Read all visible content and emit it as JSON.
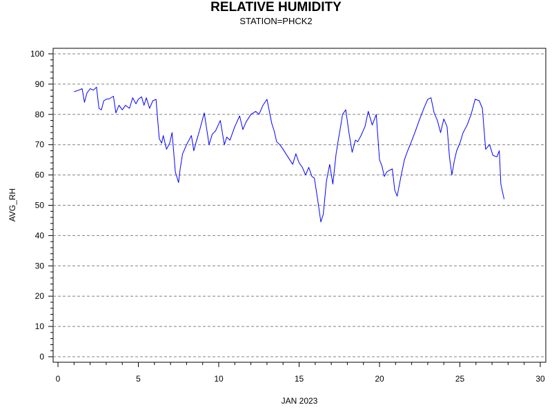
{
  "chart_data": {
    "type": "line",
    "title": "RELATIVE HUMIDITY",
    "subtitle": "STATION=PHCK2",
    "xlabel": "JAN 2023",
    "ylabel": "AVG_RH",
    "xlim": [
      0,
      30
    ],
    "ylim": [
      0,
      100
    ],
    "x_ticks": [
      0,
      5,
      10,
      15,
      20,
      25,
      30
    ],
    "y_ticks": [
      0,
      10,
      20,
      30,
      40,
      50,
      60,
      70,
      80,
      90,
      100
    ],
    "grid": "horizontal dashed at y ticks",
    "line_color": "#0000ff",
    "x": [
      1.0,
      1.3,
      1.5,
      1.65,
      1.8,
      2.0,
      2.2,
      2.4,
      2.55,
      2.7,
      2.85,
      3.0,
      3.2,
      3.45,
      3.6,
      3.8,
      4.0,
      4.2,
      4.45,
      4.65,
      4.85,
      5.0,
      5.2,
      5.35,
      5.5,
      5.7,
      5.9,
      6.1,
      6.3,
      6.45,
      6.55,
      6.75,
      6.95,
      7.1,
      7.3,
      7.5,
      7.6,
      7.75,
      8.0,
      8.3,
      8.45,
      8.6,
      8.8,
      9.1,
      9.4,
      9.6,
      9.8,
      10.1,
      10.35,
      10.5,
      10.7,
      11.0,
      11.3,
      11.5,
      11.7,
      12.0,
      12.3,
      12.5,
      12.75,
      13.0,
      13.3,
      13.45,
      13.6,
      13.8,
      14.0,
      14.3,
      14.6,
      14.8,
      15.0,
      15.2,
      15.4,
      15.6,
      15.8,
      15.95,
      16.15,
      16.35,
      16.5,
      16.7,
      16.9,
      17.1,
      17.3,
      17.45,
      17.55,
      17.7,
      17.9,
      18.1,
      18.3,
      18.5,
      18.65,
      18.85,
      19.1,
      19.3,
      19.55,
      19.8,
      20.0,
      20.15,
      20.3,
      20.45,
      20.6,
      20.8,
      20.95,
      21.1,
      21.35,
      21.55,
      21.75,
      21.95,
      22.2,
      22.5,
      22.8,
      23.0,
      23.2,
      23.4,
      23.6,
      23.8,
      24.0,
      24.2,
      24.35,
      24.5,
      24.65,
      24.8,
      25.0,
      25.2,
      25.45,
      25.7,
      25.95,
      26.2,
      26.4,
      26.6,
      26.85,
      27.05,
      27.3,
      27.45,
      27.55,
      27.75
    ],
    "y": [
      87.5,
      88.0,
      88.5,
      84.0,
      87.0,
      88.5,
      88.0,
      89.0,
      82.0,
      81.5,
      84.5,
      85.0,
      85.2,
      86.0,
      80.5,
      83.0,
      81.5,
      83.0,
      82.0,
      85.5,
      83.5,
      85.0,
      85.8,
      83.0,
      85.5,
      82.0,
      84.5,
      85.0,
      72.0,
      70.5,
      73.0,
      68.5,
      70.5,
      74.0,
      61.0,
      57.5,
      62.0,
      67.0,
      70.0,
      73.0,
      68.0,
      71.0,
      74.5,
      80.5,
      70.0,
      73.5,
      74.5,
      78.0,
      70.0,
      72.5,
      71.5,
      76.0,
      79.5,
      75.0,
      77.5,
      80.0,
      81.0,
      80.0,
      83.0,
      85.0,
      77.0,
      74.5,
      71.0,
      70.0,
      68.5,
      66.0,
      63.5,
      67.0,
      64.0,
      62.5,
      60.0,
      62.5,
      59.5,
      59.0,
      52.0,
      44.5,
      47.0,
      58.0,
      63.5,
      57.0,
      67.0,
      72.0,
      75.0,
      80.0,
      81.5,
      74.0,
      67.5,
      71.5,
      71.0,
      73.0,
      76.0,
      81.0,
      76.5,
      80.0,
      65.0,
      63.0,
      59.5,
      61.0,
      61.5,
      62.0,
      55.0,
      53.0,
      60.0,
      65.0,
      68.0,
      70.5,
      74.0,
      78.5,
      82.5,
      85.0,
      85.5,
      80.5,
      78.0,
      74.0,
      78.5,
      76.0,
      66.0,
      60.0,
      64.5,
      68.0,
      70.5,
      74.0,
      76.5,
      80.0,
      85.0,
      84.5,
      82.0,
      68.5,
      70.0,
      66.5,
      66.0,
      68.0,
      57.0,
      52.0
    ]
  }
}
